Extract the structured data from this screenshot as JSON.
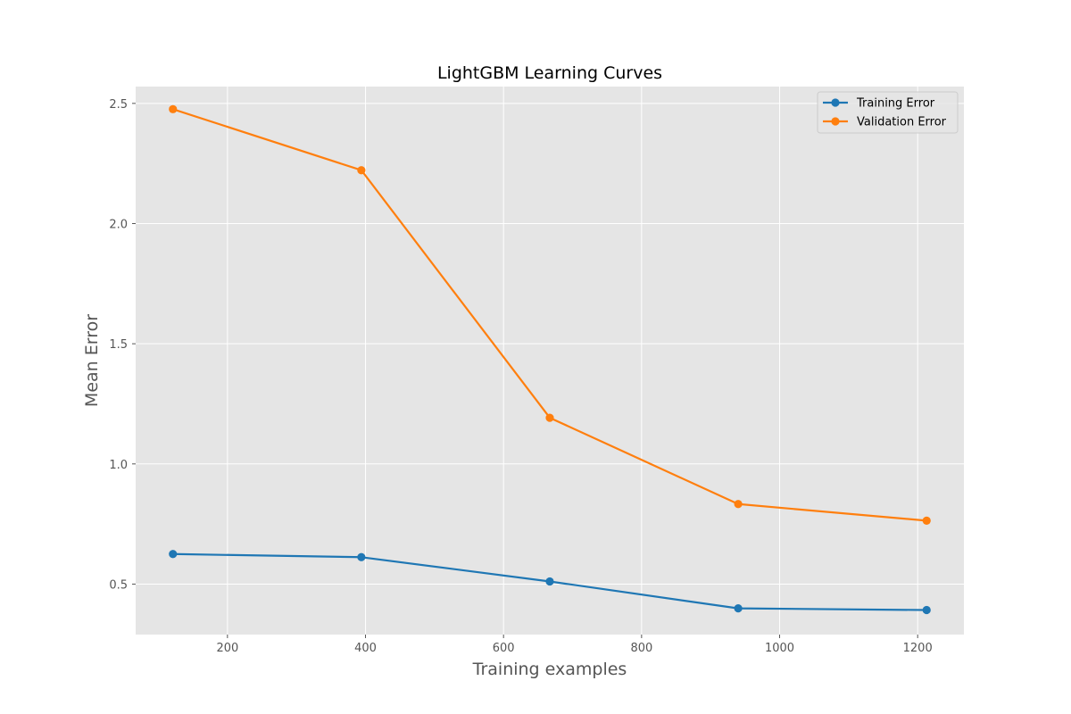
{
  "chart_data": {
    "type": "line",
    "title": "LightGBM Learning Curves",
    "xlabel": "Training examples",
    "ylabel": "Mean Error",
    "xlim": [
      67,
      1267
    ],
    "ylim": [
      0.29,
      2.57
    ],
    "xticks": [
      200,
      400,
      600,
      800,
      1000,
      1200
    ],
    "yticks": [
      0.5,
      1.0,
      1.5,
      2.0,
      2.5
    ],
    "ytick_labels": [
      "0.5",
      "1.0",
      "1.5",
      "2.0",
      "2.5"
    ],
    "grid": true,
    "legend_position": "top-right",
    "x": [
      121,
      394,
      667,
      940,
      1213
    ],
    "series": [
      {
        "name": "Training Error",
        "color": "#1f77b4",
        "values": [
          0.625,
          0.612,
          0.511,
          0.399,
          0.392
        ]
      },
      {
        "name": "Validation Error",
        "color": "#ff7f0e",
        "values": [
          2.476,
          2.222,
          1.192,
          0.833,
          0.764
        ]
      }
    ]
  }
}
